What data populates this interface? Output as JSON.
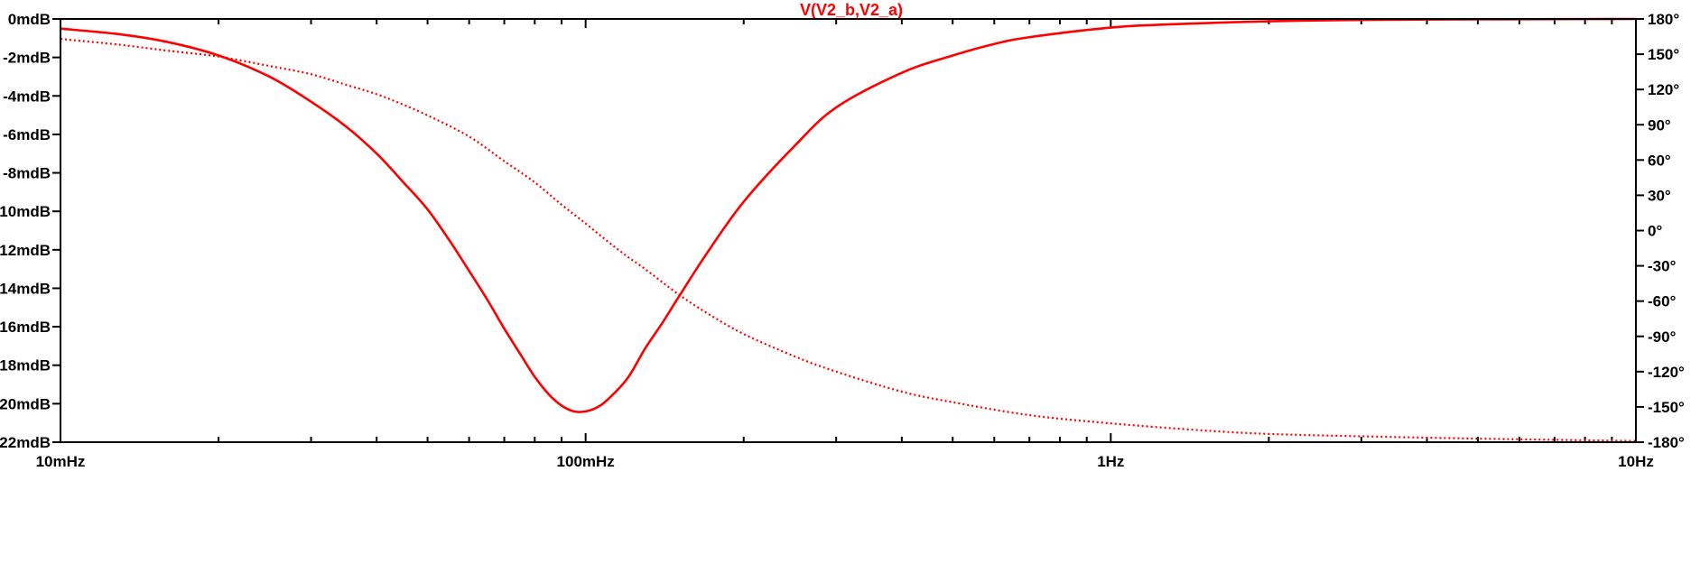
{
  "chart_data": {
    "type": "line",
    "title": "V(V2_b,V2_a)",
    "title_color": "#ff0000",
    "line_color": "#ff0000",
    "frame_color": "#000000",
    "background": "#ffffff",
    "x_scale": "log",
    "x_unit": "Hz",
    "xlim": [
      0.01,
      10
    ],
    "x_tick_labels": [
      {
        "value": 0.01,
        "label": "10mHz"
      },
      {
        "value": 0.1,
        "label": "100mHz"
      },
      {
        "value": 1,
        "label": "1Hz"
      },
      {
        "value": 10,
        "label": "10Hz"
      }
    ],
    "y_left_unit": "dB",
    "ylim_left": [
      -22,
      0
    ],
    "y_left_tick_labels": [
      {
        "value": 0,
        "label": "0mdB"
      },
      {
        "value": -2,
        "label": "-2mdB"
      },
      {
        "value": -4,
        "label": "-4mdB"
      },
      {
        "value": -6,
        "label": "-6mdB"
      },
      {
        "value": -8,
        "label": "-8mdB"
      },
      {
        "value": -10,
        "label": "-10mdB"
      },
      {
        "value": -12,
        "label": "-12mdB"
      },
      {
        "value": -14,
        "label": "-14mdB"
      },
      {
        "value": -16,
        "label": "-16mdB"
      },
      {
        "value": -18,
        "label": "-18mdB"
      },
      {
        "value": -20,
        "label": "-20mdB"
      },
      {
        "value": -22,
        "label": "-22mdB"
      }
    ],
    "y_right_unit": "degrees",
    "ylim_right": [
      -180,
      180
    ],
    "y_right_tick_labels": [
      {
        "value": 180,
        "label": "180°"
      },
      {
        "value": 150,
        "label": "150°"
      },
      {
        "value": 120,
        "label": "120°"
      },
      {
        "value": 90,
        "label": "90°"
      },
      {
        "value": 60,
        "label": "60°"
      },
      {
        "value": 30,
        "label": "30°"
      },
      {
        "value": 0,
        "label": "0°"
      },
      {
        "value": -30,
        "label": "-30°"
      },
      {
        "value": -60,
        "label": "-60°"
      },
      {
        "value": -90,
        "label": "-90°"
      },
      {
        "value": -120,
        "label": "-120°"
      },
      {
        "value": -150,
        "label": "-150°"
      },
      {
        "value": -180,
        "label": "-180°"
      }
    ],
    "grid": false,
    "series": [
      {
        "axis": "left",
        "style": "solid",
        "x": [
          0.01,
          0.013,
          0.016,
          0.02,
          0.025,
          0.03,
          0.035,
          0.04,
          0.045,
          0.05,
          0.055,
          0.06,
          0.065,
          0.07,
          0.075,
          0.08,
          0.085,
          0.09,
          0.095,
          0.1,
          0.105,
          0.11,
          0.12,
          0.13,
          0.14,
          0.15,
          0.17,
          0.2,
          0.25,
          0.3,
          0.4,
          0.5,
          0.6,
          0.7,
          1,
          1.3,
          2,
          3,
          5,
          7,
          10
        ],
        "y": [
          -0.5,
          -0.8,
          -1.2,
          -1.9,
          -3.0,
          -4.3,
          -5.6,
          -7.0,
          -8.5,
          -9.9,
          -11.5,
          -13.1,
          -14.6,
          -16.1,
          -17.4,
          -18.6,
          -19.5,
          -20.1,
          -20.4,
          -20.4,
          -20.2,
          -19.8,
          -18.7,
          -17.1,
          -15.8,
          -14.5,
          -12.2,
          -9.5,
          -6.6,
          -4.6,
          -2.8,
          -1.9,
          -1.3,
          -0.95,
          -0.45,
          -0.28,
          -0.12,
          -0.05,
          -0.02,
          -0.01,
          0
        ]
      },
      {
        "axis": "right",
        "style": "dotted",
        "x": [
          0.01,
          0.013,
          0.016,
          0.02,
          0.025,
          0.03,
          0.035,
          0.04,
          0.045,
          0.05,
          0.06,
          0.07,
          0.08,
          0.09,
          0.1,
          0.11,
          0.12,
          0.13,
          0.15,
          0.17,
          0.2,
          0.25,
          0.3,
          0.4,
          0.5,
          0.7,
          1,
          1.5,
          2,
          3,
          5,
          7,
          10
        ],
        "y": [
          163,
          158,
          153,
          148,
          140,
          133,
          124,
          116,
          107,
          98,
          80,
          59,
          41,
          22,
          6,
          -9,
          -22,
          -33,
          -54,
          -70,
          -88,
          -107,
          -120,
          -137,
          -146,
          -157,
          -164,
          -170,
          -173,
          -175,
          -177,
          -178,
          -179
        ]
      }
    ]
  }
}
